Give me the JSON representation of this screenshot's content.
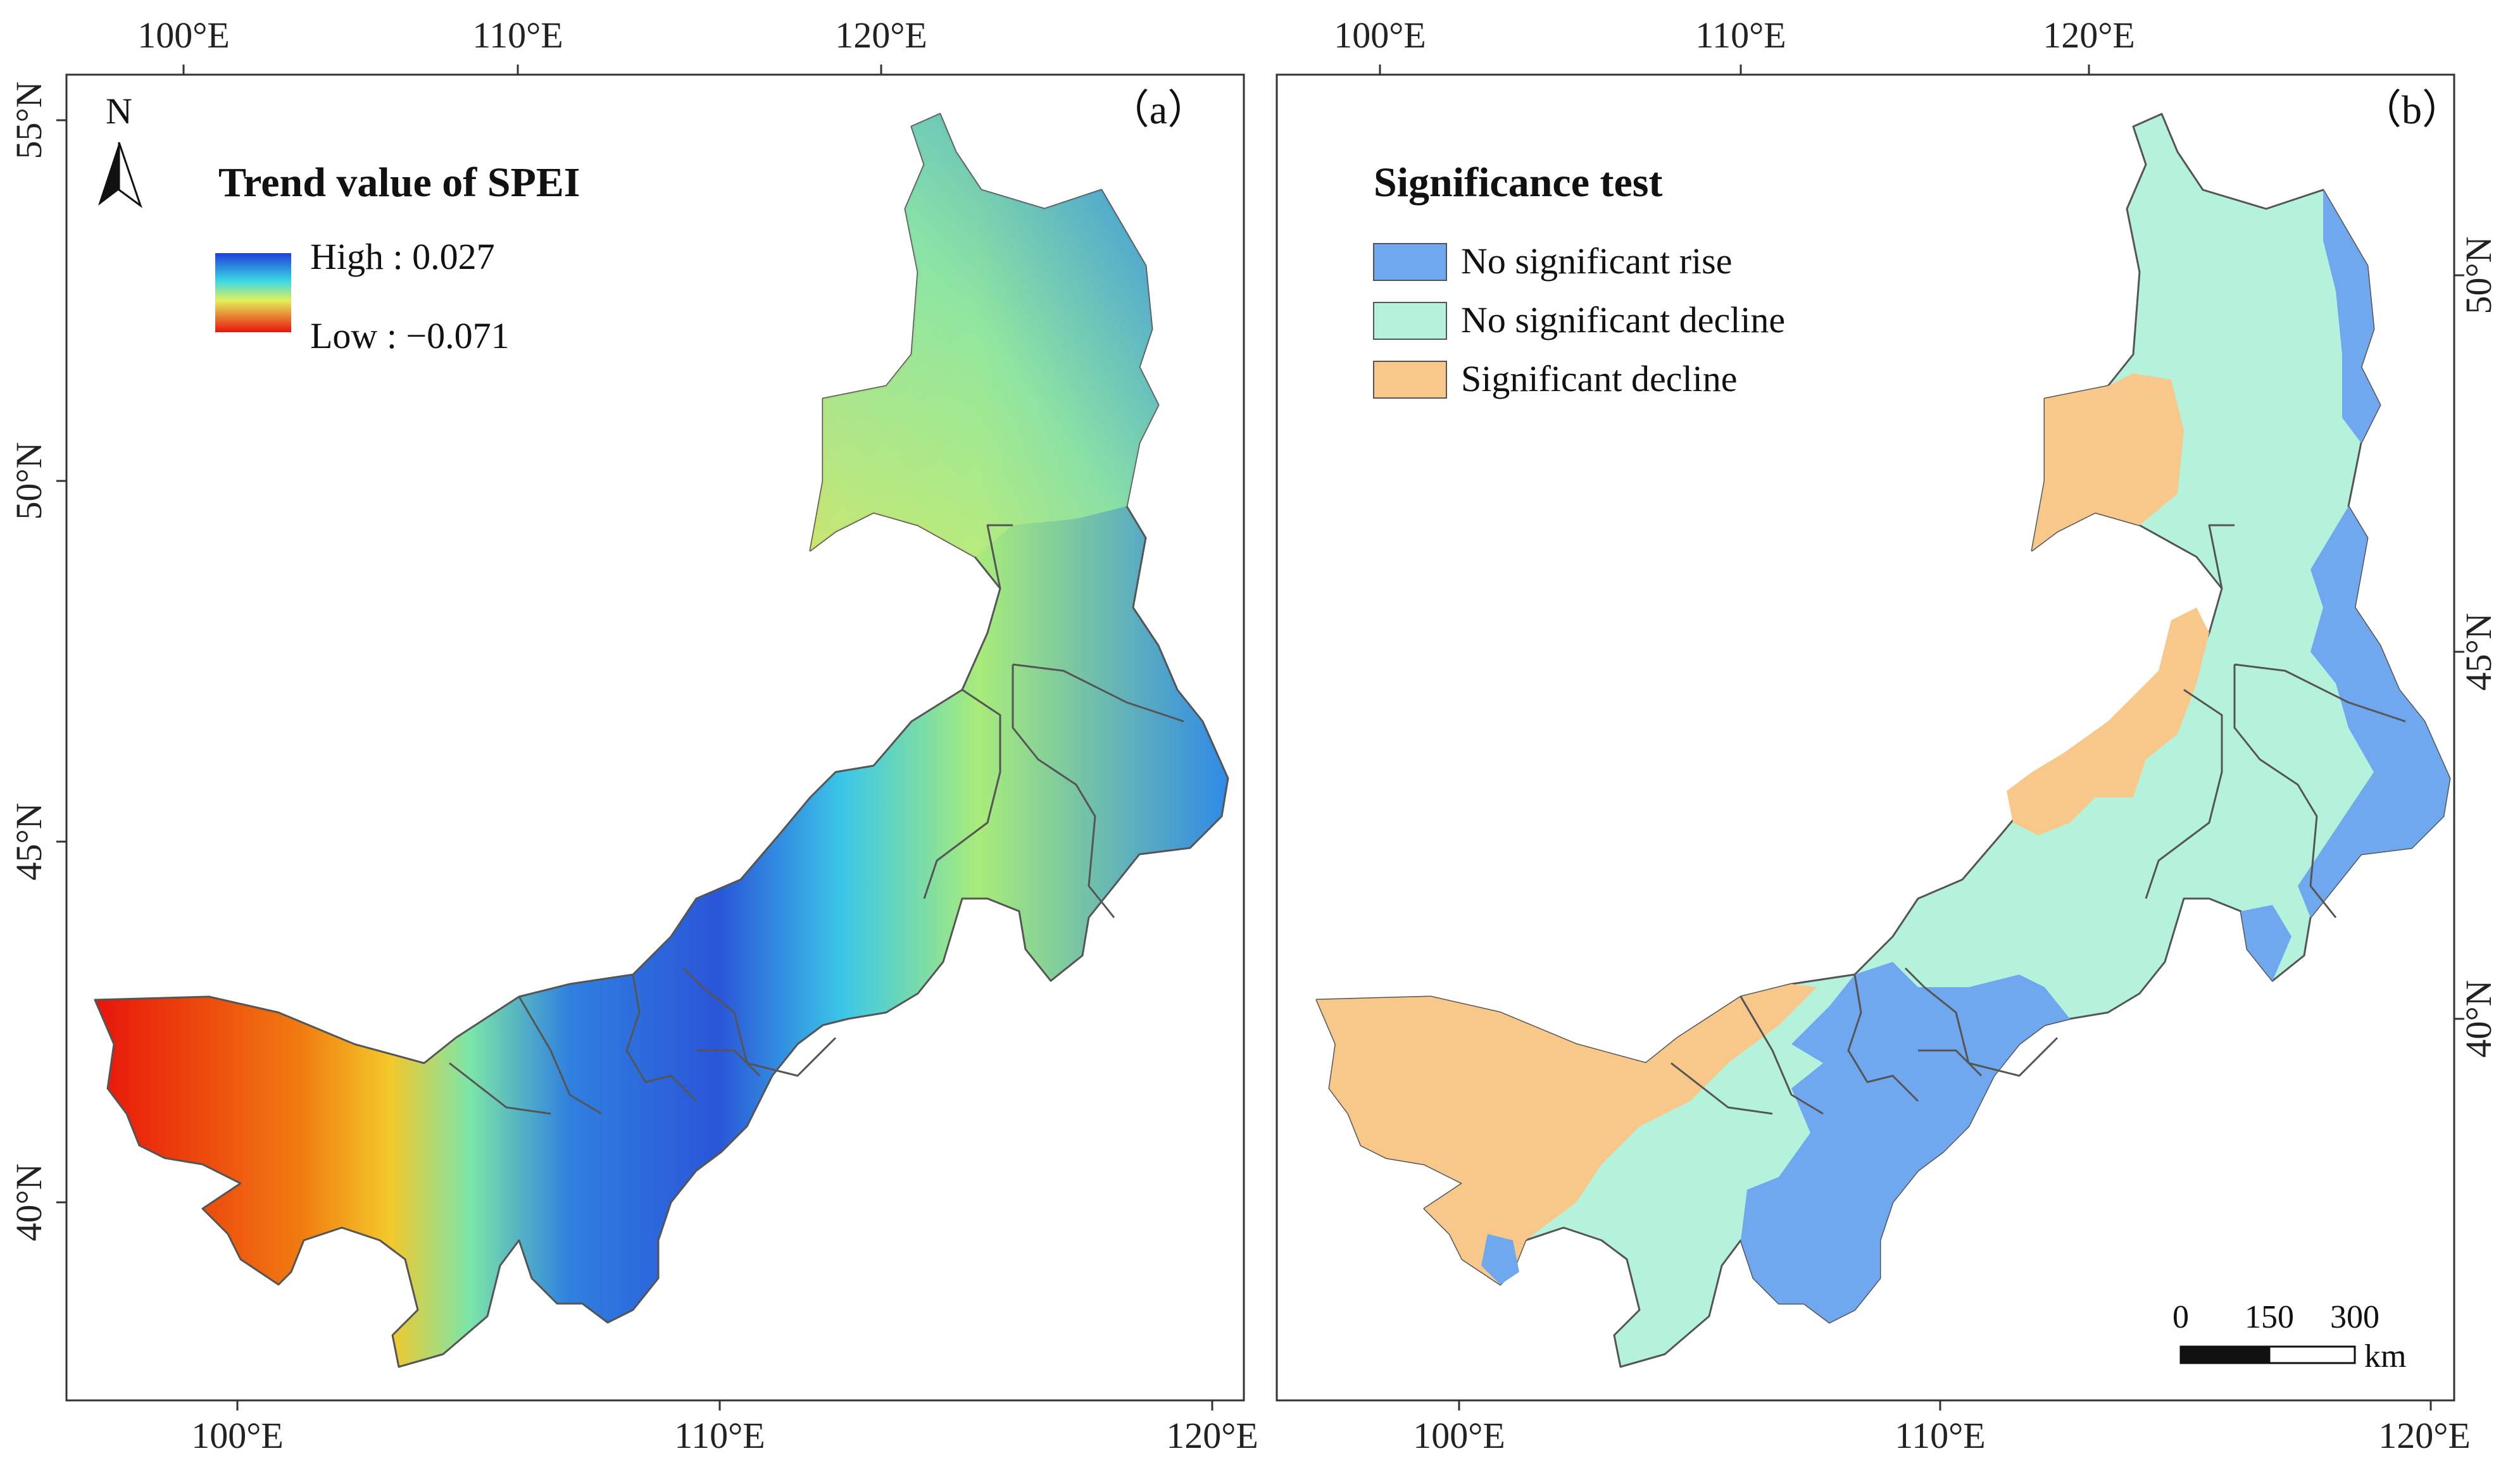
{
  "panel_a": {
    "label": "（a）",
    "legend": {
      "title": "Trend value of SPEI",
      "high_label": "High : 0.027",
      "low_label": "Low : −0.071"
    },
    "north_arrow_label": "N",
    "top_ticks": [
      "100°E",
      "110°E",
      "120°E"
    ],
    "bottom_ticks": [
      "100°E",
      "110°E",
      "120°E"
    ],
    "left_ticks": [
      "55°N",
      "50°N",
      "45°N",
      "40°N"
    ]
  },
  "panel_b": {
    "label": "（b）",
    "legend": {
      "title": "Significance test",
      "items": [
        {
          "label": "No significant rise",
          "color": "#6fa8ee"
        },
        {
          "label": "No significant decline",
          "color": "#b5f2dc"
        },
        {
          "label": "Significant decline",
          "color": "#f8c88a"
        }
      ]
    },
    "top_ticks": [
      "100°E",
      "110°E",
      "120°E"
    ],
    "bottom_ticks": [
      "100°E",
      "110°E",
      "120°E"
    ],
    "right_ticks": [
      "50°N",
      "45°N",
      "40°N"
    ],
    "scale_bar": {
      "tick_labels": [
        "0",
        "150",
        "300"
      ],
      "unit": "km"
    }
  },
  "colors": {
    "spei_high": "#1f3fd8",
    "spei_mid": "#39d8e6",
    "spei_yellow": "#e4f05a",
    "spei_low": "#e8140a",
    "rise": "#6fa8ee",
    "no_decline": "#b5f2dc",
    "sig_decline": "#f8c88a"
  }
}
